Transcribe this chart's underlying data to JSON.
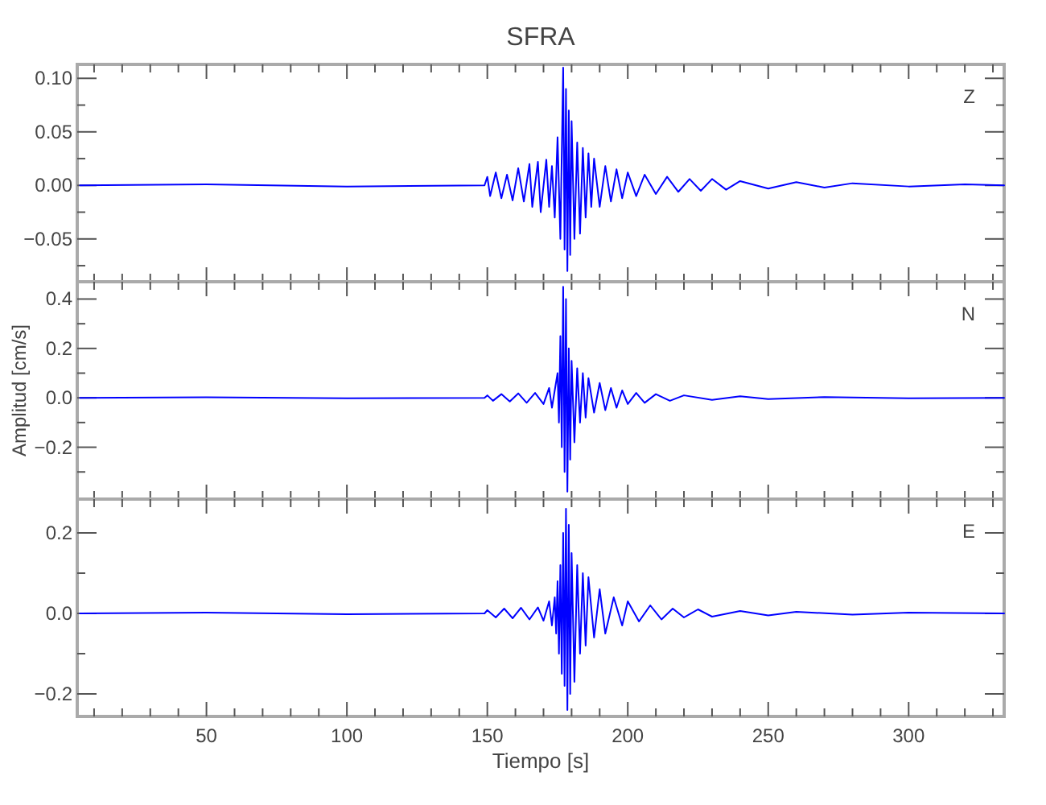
{
  "chart_data": [
    {
      "type": "line",
      "title": "SFRA",
      "tick_labels": "y",
      "xlim": [
        4,
        334
      ],
      "ylim": [
        -0.09,
        0.113
      ],
      "xticks": [
        {
          "value": 10,
          "label": null
        },
        {
          "value": 20,
          "label": null
        },
        {
          "value": 30,
          "label": null
        },
        {
          "value": 40,
          "label": null
        },
        {
          "value": 50,
          "label": null
        },
        {
          "value": 60,
          "label": null
        },
        {
          "value": 70,
          "label": null
        },
        {
          "value": 80,
          "label": null
        },
        {
          "value": 90,
          "label": null
        },
        {
          "value": 100,
          "label": null
        },
        {
          "value": 110,
          "label": null
        },
        {
          "value": 120,
          "label": null
        },
        {
          "value": 130,
          "label": null
        },
        {
          "value": 140,
          "label": null
        },
        {
          "value": 150,
          "label": null
        },
        {
          "value": 160,
          "label": null
        },
        {
          "value": 170,
          "label": null
        },
        {
          "value": 180,
          "label": null
        },
        {
          "value": 190,
          "label": null
        },
        {
          "value": 200,
          "label": null
        },
        {
          "value": 210,
          "label": null
        },
        {
          "value": 220,
          "label": null
        },
        {
          "value": 230,
          "label": null
        },
        {
          "value": 240,
          "label": null
        },
        {
          "value": 250,
          "label": null
        },
        {
          "value": 260,
          "label": null
        },
        {
          "value": 270,
          "label": null
        },
        {
          "value": 280,
          "label": null
        },
        {
          "value": 290,
          "label": null
        },
        {
          "value": 300,
          "label": null
        },
        {
          "value": 310,
          "label": null
        },
        {
          "value": 320,
          "label": null
        },
        {
          "value": 330,
          "label": null
        }
      ],
      "yticks": [
        {
          "value": -0.075,
          "label": null
        },
        {
          "value": -0.05,
          "label": "−0.05"
        },
        {
          "value": -0.025,
          "label": null
        },
        {
          "value": 0,
          "label": "0.00"
        },
        {
          "value": 0.025,
          "label": null
        },
        {
          "value": 0.05,
          "label": "0.05"
        },
        {
          "value": 0.075,
          "label": null
        },
        {
          "value": 0.1,
          "label": "0.10"
        }
      ],
      "series": [
        {
          "name": "Z",
          "color": "#0000ff",
          "x": [
            5,
            50,
            100,
            149,
            150,
            151,
            153,
            155,
            157,
            159,
            161,
            163,
            165,
            166,
            168,
            169,
            171,
            172,
            173,
            174,
            175,
            176,
            177,
            177.5,
            178,
            178.5,
            179,
            179.5,
            180,
            181,
            182,
            183,
            184,
            185,
            186,
            187,
            188,
            190,
            192,
            194,
            196,
            198,
            200,
            203,
            206,
            210,
            214,
            218,
            222,
            226,
            230,
            235,
            240,
            250,
            260,
            270,
            280,
            300,
            320,
            334
          ],
          "values": [
            0,
            0.001,
            -0.001,
            0,
            0.008,
            -0.01,
            0.012,
            -0.012,
            0.01,
            -0.014,
            0.016,
            -0.015,
            0.02,
            -0.02,
            0.022,
            -0.025,
            0.024,
            -0.02,
            0.018,
            -0.03,
            0.045,
            -0.05,
            0.11,
            -0.06,
            0.09,
            -0.08,
            0.07,
            -0.065,
            0.06,
            -0.05,
            0.04,
            -0.045,
            0.035,
            -0.03,
            0.03,
            -0.02,
            0.025,
            -0.02,
            0.018,
            -0.015,
            0.015,
            -0.012,
            0.012,
            -0.01,
            0.01,
            -0.008,
            0.008,
            -0.006,
            0.006,
            -0.005,
            0.006,
            -0.004,
            0.004,
            -0.003,
            0.003,
            -0.002,
            0.002,
            -0.001,
            0.001,
            0
          ]
        }
      ]
    },
    {
      "type": "line",
      "ylabel": "Amplitud [cm/s]",
      "tick_labels": "y",
      "xlim": [
        4,
        334
      ],
      "ylim": [
        -0.41,
        0.47
      ],
      "xticks": [
        {
          "value": 10,
          "label": null
        },
        {
          "value": 20,
          "label": null
        },
        {
          "value": 30,
          "label": null
        },
        {
          "value": 40,
          "label": null
        },
        {
          "value": 50,
          "label": null
        },
        {
          "value": 60,
          "label": null
        },
        {
          "value": 70,
          "label": null
        },
        {
          "value": 80,
          "label": null
        },
        {
          "value": 90,
          "label": null
        },
        {
          "value": 100,
          "label": null
        },
        {
          "value": 110,
          "label": null
        },
        {
          "value": 120,
          "label": null
        },
        {
          "value": 130,
          "label": null
        },
        {
          "value": 140,
          "label": null
        },
        {
          "value": 150,
          "label": null
        },
        {
          "value": 160,
          "label": null
        },
        {
          "value": 170,
          "label": null
        },
        {
          "value": 180,
          "label": null
        },
        {
          "value": 190,
          "label": null
        },
        {
          "value": 200,
          "label": null
        },
        {
          "value": 210,
          "label": null
        },
        {
          "value": 220,
          "label": null
        },
        {
          "value": 230,
          "label": null
        },
        {
          "value": 240,
          "label": null
        },
        {
          "value": 250,
          "label": null
        },
        {
          "value": 260,
          "label": null
        },
        {
          "value": 270,
          "label": null
        },
        {
          "value": 280,
          "label": null
        },
        {
          "value": 290,
          "label": null
        },
        {
          "value": 300,
          "label": null
        },
        {
          "value": 310,
          "label": null
        },
        {
          "value": 320,
          "label": null
        },
        {
          "value": 330,
          "label": null
        }
      ],
      "yticks": [
        {
          "value": -0.3,
          "label": null
        },
        {
          "value": -0.2,
          "label": "−0.2"
        },
        {
          "value": -0.1,
          "label": null
        },
        {
          "value": 0,
          "label": "0.0"
        },
        {
          "value": 0.1,
          "label": null
        },
        {
          "value": 0.2,
          "label": "0.2"
        },
        {
          "value": 0.3,
          "label": null
        },
        {
          "value": 0.4,
          "label": "0.4"
        }
      ],
      "series": [
        {
          "name": "N",
          "color": "#0000ff",
          "x": [
            5,
            50,
            100,
            149,
            150,
            152,
            155,
            158,
            161,
            164,
            167,
            170,
            172,
            173,
            175,
            175.5,
            176,
            176.5,
            177,
            177.5,
            178,
            178.5,
            179,
            179.5,
            180,
            181,
            182,
            183,
            184,
            185,
            186,
            188,
            190,
            192,
            194,
            196,
            198,
            200,
            203,
            206,
            210,
            215,
            220,
            230,
            240,
            250,
            270,
            300,
            334
          ],
          "values": [
            0,
            0.002,
            -0.002,
            0,
            0.01,
            -0.012,
            0.015,
            -0.015,
            0.018,
            -0.02,
            0.02,
            -0.025,
            0.04,
            -0.04,
            0.1,
            -0.1,
            0.25,
            -0.2,
            0.45,
            -0.3,
            0.4,
            -0.38,
            0.2,
            -0.25,
            0.15,
            -0.18,
            0.12,
            -0.1,
            0.1,
            -0.08,
            0.08,
            -0.06,
            0.06,
            -0.05,
            0.04,
            -0.04,
            0.03,
            -0.025,
            0.02,
            -0.02,
            0.015,
            -0.012,
            0.01,
            -0.008,
            0.006,
            -0.005,
            0.003,
            -0.002,
            0
          ]
        }
      ]
    },
    {
      "type": "line",
      "xlabel": "Tiempo [s]",
      "xlim": [
        4,
        334
      ],
      "ylim": [
        -0.256,
        0.284
      ],
      "xticks": [
        {
          "value": 10,
          "label": null
        },
        {
          "value": 20,
          "label": null
        },
        {
          "value": 30,
          "label": null
        },
        {
          "value": 40,
          "label": null
        },
        {
          "value": 50,
          "label": "50"
        },
        {
          "value": 60,
          "label": null
        },
        {
          "value": 70,
          "label": null
        },
        {
          "value": 80,
          "label": null
        },
        {
          "value": 90,
          "label": null
        },
        {
          "value": 100,
          "label": "100"
        },
        {
          "value": 110,
          "label": null
        },
        {
          "value": 120,
          "label": null
        },
        {
          "value": 130,
          "label": null
        },
        {
          "value": 140,
          "label": null
        },
        {
          "value": 150,
          "label": "150"
        },
        {
          "value": 160,
          "label": null
        },
        {
          "value": 170,
          "label": null
        },
        {
          "value": 180,
          "label": null
        },
        {
          "value": 190,
          "label": null
        },
        {
          "value": 200,
          "label": "200"
        },
        {
          "value": 210,
          "label": null
        },
        {
          "value": 220,
          "label": null
        },
        {
          "value": 230,
          "label": null
        },
        {
          "value": 240,
          "label": null
        },
        {
          "value": 250,
          "label": "250"
        },
        {
          "value": 260,
          "label": null
        },
        {
          "value": 270,
          "label": null
        },
        {
          "value": 280,
          "label": null
        },
        {
          "value": 290,
          "label": null
        },
        {
          "value": 300,
          "label": "300"
        },
        {
          "value": 310,
          "label": null
        },
        {
          "value": 320,
          "label": null
        },
        {
          "value": 330,
          "label": null
        }
      ],
      "yticks": [
        {
          "value": -0.2,
          "label": "−0.2"
        },
        {
          "value": -0.1,
          "label": null
        },
        {
          "value": 0,
          "label": "0.0"
        },
        {
          "value": 0.1,
          "label": null
        },
        {
          "value": 0.2,
          "label": "0.2"
        }
      ],
      "series": [
        {
          "name": "E",
          "color": "#0000ff",
          "x": [
            5,
            50,
            100,
            149,
            150,
            153,
            156,
            159,
            162,
            165,
            168,
            170,
            172,
            173,
            174,
            174.5,
            175,
            175.5,
            176,
            176.5,
            177,
            177.5,
            178,
            178.5,
            179,
            179.5,
            180,
            181,
            182,
            183,
            184,
            185,
            186,
            188,
            190,
            192,
            195,
            198,
            200,
            204,
            208,
            212,
            216,
            220,
            225,
            230,
            240,
            250,
            260,
            280,
            300,
            334
          ],
          "values": [
            0,
            0.002,
            -0.002,
            0,
            0.008,
            -0.01,
            0.012,
            -0.012,
            0.014,
            -0.015,
            0.015,
            -0.018,
            0.03,
            -0.03,
            0.04,
            -0.05,
            0.08,
            -0.1,
            0.12,
            -0.15,
            0.2,
            -0.18,
            0.26,
            -0.24,
            0.22,
            -0.2,
            0.15,
            -0.17,
            0.12,
            -0.1,
            0.1,
            -0.08,
            0.09,
            -0.06,
            0.06,
            -0.05,
            0.04,
            -0.03,
            0.03,
            -0.02,
            0.02,
            -0.015,
            0.012,
            -0.01,
            0.01,
            -0.008,
            0.006,
            -0.005,
            0.004,
            -0.003,
            0.002,
            0
          ]
        }
      ]
    }
  ]
}
